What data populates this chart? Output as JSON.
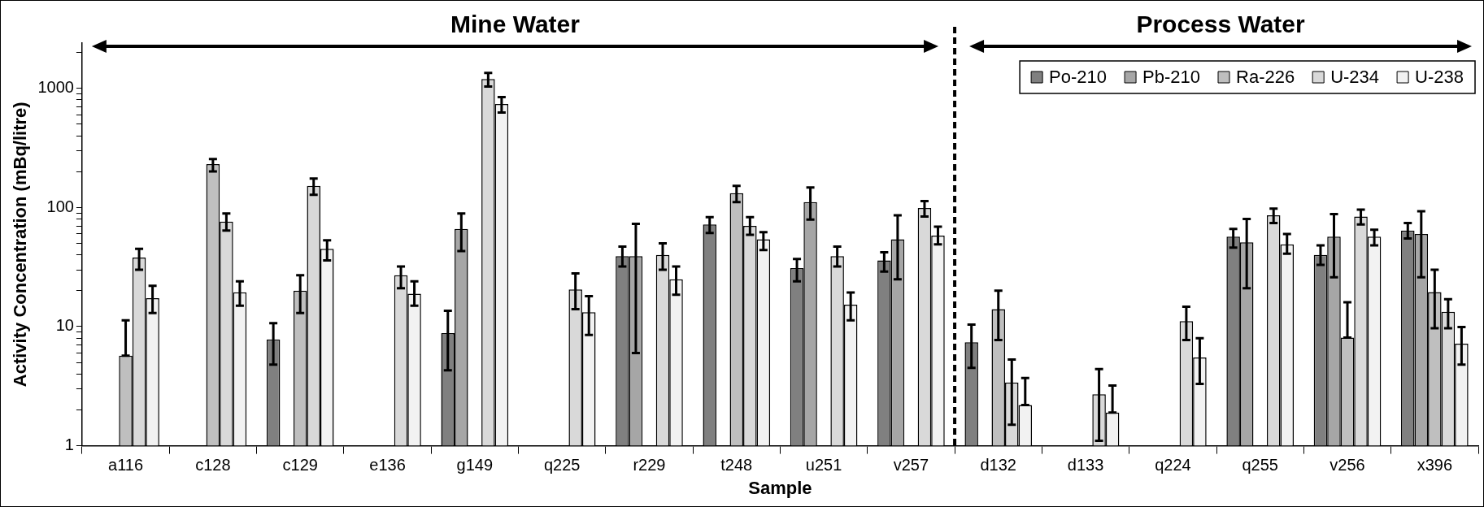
{
  "chart_data": {
    "type": "bar",
    "xlabel": "Sample",
    "ylabel": "Activity Concentration (mBq/litre)",
    "categories": [
      "a116",
      "c128",
      "c129",
      "e136",
      "g149",
      "q225",
      "r229",
      "t248",
      "u251",
      "v257",
      "d132",
      "d133",
      "q224",
      "q255",
      "v256",
      "x396"
    ],
    "series": [
      {
        "name": "Po-210",
        "color": "#808080",
        "values": [
          null,
          null,
          7.8,
          null,
          8.8,
          null,
          39,
          72,
          31,
          36,
          7.4,
          null,
          null,
          57,
          40,
          64
        ],
        "errors": [
          null,
          null,
          [
            4.8,
            10.7
          ],
          null,
          [
            4.3,
            13.6
          ],
          null,
          [
            32,
            47
          ],
          [
            61,
            83
          ],
          [
            24,
            37
          ],
          [
            29,
            42
          ],
          [
            4.5,
            10.4
          ],
          null,
          null,
          [
            46,
            66
          ],
          [
            33,
            48
          ],
          [
            55,
            74
          ]
        ]
      },
      {
        "name": "Pb-210",
        "color": "#a6a6a6",
        "values": [
          null,
          null,
          null,
          null,
          66,
          null,
          39,
          null,
          111,
          54,
          null,
          null,
          null,
          51,
          57,
          60
        ],
        "errors": [
          null,
          null,
          null,
          null,
          [
            43,
            89
          ],
          null,
          [
            6,
            73
          ],
          null,
          [
            79,
            147
          ],
          [
            25,
            86
          ],
          null,
          null,
          null,
          [
            21,
            80
          ],
          [
            26,
            88
          ],
          [
            26,
            93
          ]
        ]
      },
      {
        "name": "Ra-226",
        "color": "#bfbfbf",
        "values": [
          5.7,
          231,
          20,
          null,
          null,
          null,
          null,
          132,
          null,
          null,
          14,
          null,
          null,
          null,
          8.1,
          19.5
        ],
        "errors": [
          [
            5.7,
            11.3
          ],
          [
            201,
            255
          ],
          [
            13,
            27
          ],
          null,
          null,
          null,
          null,
          [
            111,
            152
          ],
          null,
          null,
          [
            7.7,
            20
          ],
          null,
          null,
          null,
          [
            8.1,
            16
          ],
          [
            9.7,
            30
          ]
        ]
      },
      {
        "name": "U-234",
        "color": "#d9d9d9",
        "values": [
          38,
          76,
          152,
          27,
          1200,
          20.5,
          40,
          70,
          39,
          99,
          3.4,
          2.7,
          11.1,
          86,
          84,
          13.3
        ],
        "errors": [
          [
            30,
            45
          ],
          [
            64,
            89
          ],
          [
            128,
            175
          ],
          [
            21,
            32
          ],
          [
            1035,
            1347
          ],
          [
            14,
            28
          ],
          [
            30,
            50
          ],
          [
            59,
            83
          ],
          [
            32,
            47
          ],
          [
            84,
            113
          ],
          [
            1.5,
            5.3
          ],
          [
            1.1,
            4.4
          ],
          [
            7.7,
            14.7
          ],
          [
            74,
            98
          ],
          [
            72,
            96
          ],
          [
            9.7,
            17
          ]
        ]
      },
      {
        "name": "U-238",
        "color": "#f2f2f2",
        "values": [
          17.3,
          19.4,
          45,
          18.9,
          740,
          13.2,
          25,
          54,
          15.3,
          58,
          2.2,
          1.9,
          5.5,
          49,
          57,
          7.2
        ],
        "errors": [
          [
            13,
            22
          ],
          [
            15,
            24
          ],
          [
            36,
            53
          ],
          [
            15,
            24
          ],
          [
            627,
            846
          ],
          [
            8.5,
            18
          ],
          [
            18.5,
            32
          ],
          [
            44,
            62
          ],
          [
            11.3,
            19.3
          ],
          [
            49,
            69
          ],
          [
            2.2,
            3.7
          ],
          [
            1.9,
            3.2
          ],
          [
            3.3,
            8
          ],
          [
            41,
            60
          ],
          [
            48,
            65
          ],
          [
            4.8,
            9.9
          ]
        ]
      }
    ],
    "log": true,
    "ylim": [
      1,
      2400
    ],
    "yticks": [
      1,
      {
        "value": 2,
        "label": null
      },
      {
        "value": 3,
        "label": null
      },
      {
        "value": 4,
        "label": null
      },
      {
        "value": 5,
        "label": null
      },
      {
        "value": 6,
        "label": null
      },
      {
        "value": 7,
        "label": null
      },
      {
        "value": 8,
        "label": null
      },
      {
        "value": 9,
        "label": null
      },
      10,
      {
        "value": 20,
        "label": null
      },
      {
        "value": 30,
        "label": null
      },
      {
        "value": 40,
        "label": null
      },
      {
        "value": 50,
        "label": null
      },
      {
        "value": 60,
        "label": null
      },
      {
        "value": 70,
        "label": null
      },
      {
        "value": 80,
        "label": null
      },
      {
        "value": 90,
        "label": null
      },
      100,
      {
        "value": 200,
        "label": null
      },
      {
        "value": 300,
        "label": null
      },
      {
        "value": 400,
        "label": null
      },
      {
        "value": 500,
        "label": null
      },
      {
        "value": 600,
        "label": null
      },
      {
        "value": 700,
        "label": null
      },
      {
        "value": 800,
        "label": null
      },
      {
        "value": 900,
        "label": null
      },
      1000,
      {
        "value": 2000,
        "label": null
      }
    ],
    "legend": "top right",
    "annotations": [
      "Mine Water",
      "Process Water"
    ]
  }
}
